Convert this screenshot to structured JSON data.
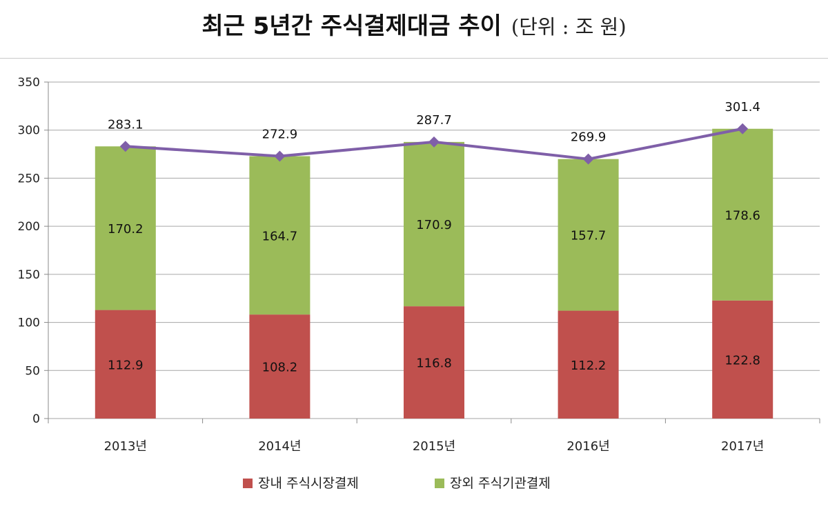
{
  "title": "최근 5년간 주식결제대금 추이",
  "unit_note": "(단위 : 조 원)",
  "chart_data": {
    "type": "bar",
    "stacked": true,
    "categories": [
      "2013년",
      "2014년",
      "2015년",
      "2016년",
      "2017년"
    ],
    "series": [
      {
        "name": "장내 주식시장결제",
        "values": [
          112.9,
          108.2,
          116.8,
          112.2,
          122.8
        ],
        "color": "#c0504d"
      },
      {
        "name": "장외 주식기관결제",
        "values": [
          170.2,
          164.7,
          170.9,
          157.7,
          178.6
        ],
        "color": "#9bbb59"
      }
    ],
    "totals": {
      "values": [
        283.1,
        272.9,
        287.7,
        269.9,
        301.4
      ],
      "labels": [
        "283.1",
        "272.9",
        "287.7",
        "269.9",
        "301.4"
      ],
      "line_color": "#7f5fa8"
    },
    "bottom_labels": [
      "112.9",
      "108.2",
      "116.8",
      "112.2",
      "122.8"
    ],
    "top_labels": [
      "170.2",
      "164.7",
      "170.9",
      "157.7",
      "178.6"
    ],
    "ylim": [
      0,
      350
    ],
    "yticks": [
      0,
      50,
      100,
      150,
      200,
      250,
      300,
      350
    ],
    "grid": true,
    "legend_position": "bottom",
    "title": "",
    "xlabel": "",
    "ylabel": ""
  }
}
